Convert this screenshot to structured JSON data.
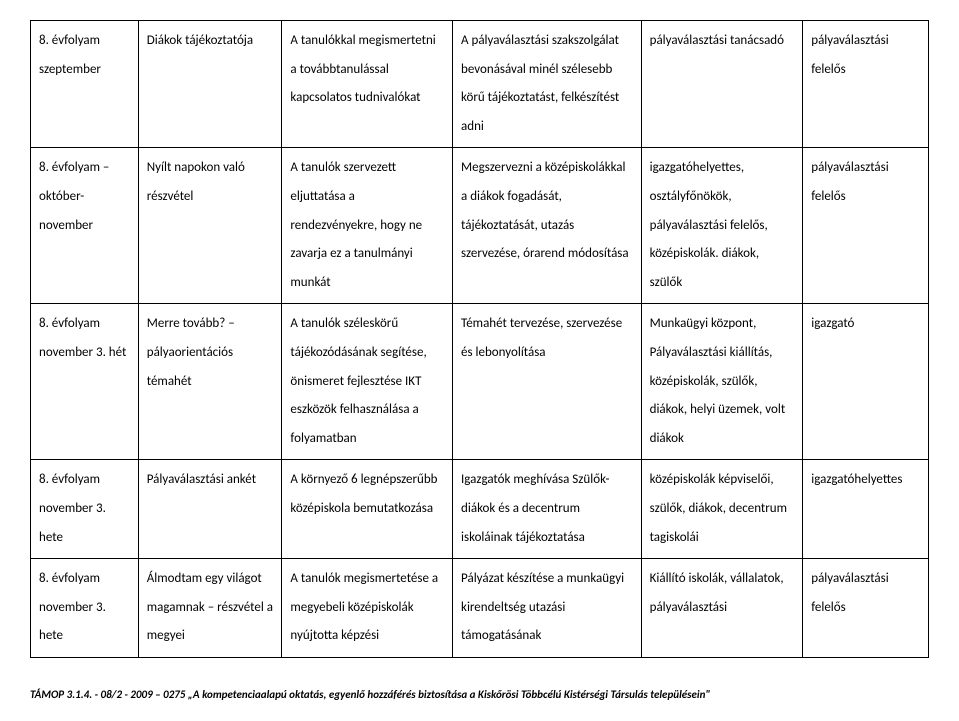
{
  "rows": [
    {
      "c1": "8. évfolyam szeptember",
      "c2": "Diákok tájékoztatója",
      "c3": "A tanulókkal megismertetni a továbbtanulással kapcsolatos tudnivalókat",
      "c4": "A pályaválasztási szakszolgálat bevonásával minél szélesebb körű tájékoztatást, felkészítést adni",
      "c5": "pályaválasztási tanácsadó",
      "c6": "pályaválasztási felelős"
    },
    {
      "c1": "8. évfolyam – október-november",
      "c2": "Nyílt napokon való részvétel",
      "c3": "A tanulók szervezett eljuttatása a rendezvényekre, hogy ne zavarja ez a tanulmányi munkát",
      "c4": "Megszervezni a középiskolákkal a diákok fogadását, tájékoztatását, utazás szervezése, órarend módosítása",
      "c5": "igazgatóhelyettes, osztályfőnökök, pályaválasztási felelős, középiskolák. diákok, szülők",
      "c6": "pályaválasztási felelős"
    },
    {
      "c1": "8. évfolyam november 3. hét",
      "c2": "Merre tovább? – pályaorientációs témahét",
      "c3": "A tanulók széleskörű tájékozódásának segítése, önismeret fejlesztése IKT eszközök felhasználása a folyamatban",
      "c4": "Témahét tervezése, szervezése és lebonyolítása",
      "c5": "Munkaügyi központ, Pályaválasztási kiállítás, középiskolák, szülők, diákok, helyi üzemek, volt diákok",
      "c6": "igazgató"
    },
    {
      "c1": "8. évfolyam november 3. hete",
      "c2": "Pályaválasztási ankét",
      "c3": "A környező 6 legnépszerűbb középiskola bemutatkozása",
      "c4": "Igazgatók meghívása Szülők-diákok és a decentrum iskoláinak tájékoztatása",
      "c5": "középiskolák képviselői, szülők, diákok, decentrum tagiskolái",
      "c6": "igazgatóhelyettes"
    },
    {
      "c1": "8. évfolyam november 3. hete",
      "c2": "Álmodtam egy világot magamnak – részvétel a megyei",
      "c3": "A tanulók megismertetése a megyebeli középiskolák nyújtotta képzési",
      "c4": "Pályázat készítése a munkaügyi kirendeltség utazási támogatásának",
      "c5": "Kiállító iskolák, vállalatok, pályaválasztási",
      "c6": "pályaválasztási felelős"
    }
  ],
  "footer": "TÁMOP 3.1.4. - 08/2 - 2009 – 0275   „A kompetenciaalapú oktatás, egyenlő hozzáférés biztosítása a Kiskőrösi Többcélú Kistérségi Társulás településein\""
}
